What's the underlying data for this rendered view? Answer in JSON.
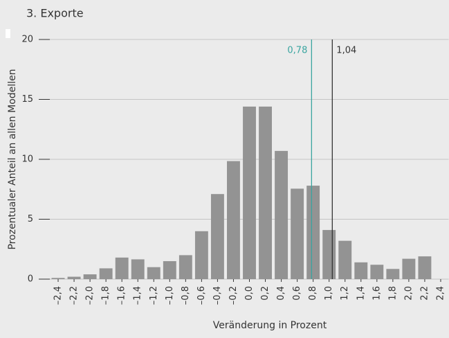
{
  "chart_data": {
    "type": "bar",
    "title": "3. Exporte",
    "y_label": "Prozentualer Anteil an allen Modellen",
    "x_label": "Veränderung in Prozent",
    "x": [
      -2.4,
      -2.2,
      -2.0,
      -1.8,
      -1.6,
      -1.4,
      -1.2,
      -1.0,
      -0.8,
      -0.6,
      -0.4,
      -0.2,
      0.0,
      0.2,
      0.4,
      0.6,
      0.8,
      1.0,
      1.2,
      1.4,
      1.6,
      1.8,
      2.0,
      2.2
    ],
    "values": [
      0.1,
      0.2,
      0.4,
      0.9,
      1.8,
      1.65,
      1.0,
      1.5,
      2.0,
      4.0,
      7.1,
      9.85,
      14.4,
      14.4,
      10.7,
      7.55,
      7.8,
      4.1,
      3.2,
      1.4,
      1.2,
      0.85,
      1.7,
      1.9
    ],
    "color": "#939393",
    "xlim": [
      -2.5,
      2.5
    ],
    "xticks": [
      {
        "value": -2.4,
        "label": "–2,4"
      },
      {
        "value": -2.2,
        "label": "–2,2"
      },
      {
        "value": -2.0,
        "label": "–2,0"
      },
      {
        "value": -1.8,
        "label": "–1,8"
      },
      {
        "value": -1.6,
        "label": "–1,6"
      },
      {
        "value": -1.4,
        "label": "–1,4"
      },
      {
        "value": -1.2,
        "label": "–1,2"
      },
      {
        "value": -1.0,
        "label": "–1,0"
      },
      {
        "value": -0.8,
        "label": "–0,8"
      },
      {
        "value": -0.6,
        "label": "–0,6"
      },
      {
        "value": -0.4,
        "label": "–0,4"
      },
      {
        "value": -0.2,
        "label": "–0,2"
      },
      {
        "value": 0.0,
        "label": "0,0"
      },
      {
        "value": 0.2,
        "label": "0,2"
      },
      {
        "value": 0.4,
        "label": "0,4"
      },
      {
        "value": 0.6,
        "label": "0,6"
      },
      {
        "value": 0.8,
        "label": "0,8"
      },
      {
        "value": 1.0,
        "label": "1,0"
      },
      {
        "value": 1.2,
        "label": "1,2"
      },
      {
        "value": 1.4,
        "label": "1,4"
      },
      {
        "value": 1.6,
        "label": "1,6"
      },
      {
        "value": 1.8,
        "label": "1,8"
      },
      {
        "value": 2.0,
        "label": "2,0"
      },
      {
        "value": 2.2,
        "label": "2,2"
      },
      {
        "value": 2.4,
        "label": "2,4"
      }
    ],
    "ylim": [
      0,
      20
    ],
    "yticks": [
      0,
      5,
      10,
      15,
      20
    ],
    "grid": true,
    "reference_lines": [
      {
        "value": 0.78,
        "label": "0,78",
        "color": "#3aa5a0"
      },
      {
        "value": 1.04,
        "label": "1,04",
        "color": "#333333"
      }
    ]
  }
}
